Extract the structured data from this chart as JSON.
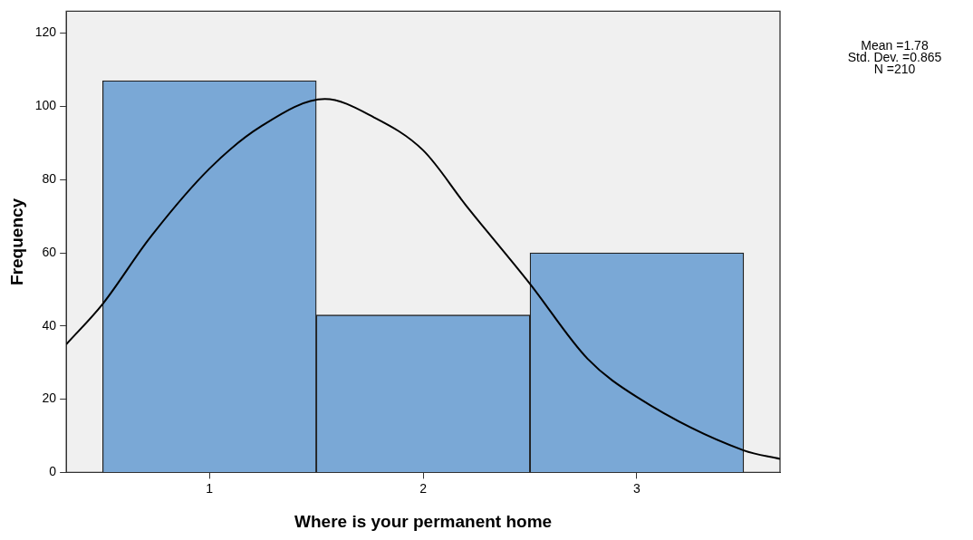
{
  "chart_data": {
    "type": "histogram",
    "xlabel": "Where is your permanent home",
    "ylabel": "Frequency",
    "bins": [
      0.5,
      1.5,
      2.5,
      3.5
    ],
    "values": [
      107,
      43,
      60
    ],
    "color": "#7aa8d6",
    "series": [
      {
        "type": "line",
        "color": "#000000",
        "x": [
          0.33,
          0.5,
          0.72,
          1,
          1.24,
          1.54,
          1.77,
          2,
          2.2,
          2.5,
          2.77,
          3,
          3.5,
          3.67
        ],
        "values": [
          35,
          46,
          64,
          83,
          94.5,
          102,
          97,
          88,
          73,
          51.5,
          31,
          20.6,
          6,
          3.7
        ]
      }
    ],
    "xlim": [
      0.33,
      3.67
    ],
    "xticks": [
      1,
      2,
      3
    ],
    "ylim": [
      0,
      126
    ],
    "yticks": [
      0,
      20,
      40,
      60,
      80,
      100,
      120
    ],
    "grid": false,
    "legend": false,
    "marker": "none",
    "annotations": [
      "Mean =1.78",
      "Std. Dev. =0.865",
      "N =210"
    ]
  }
}
